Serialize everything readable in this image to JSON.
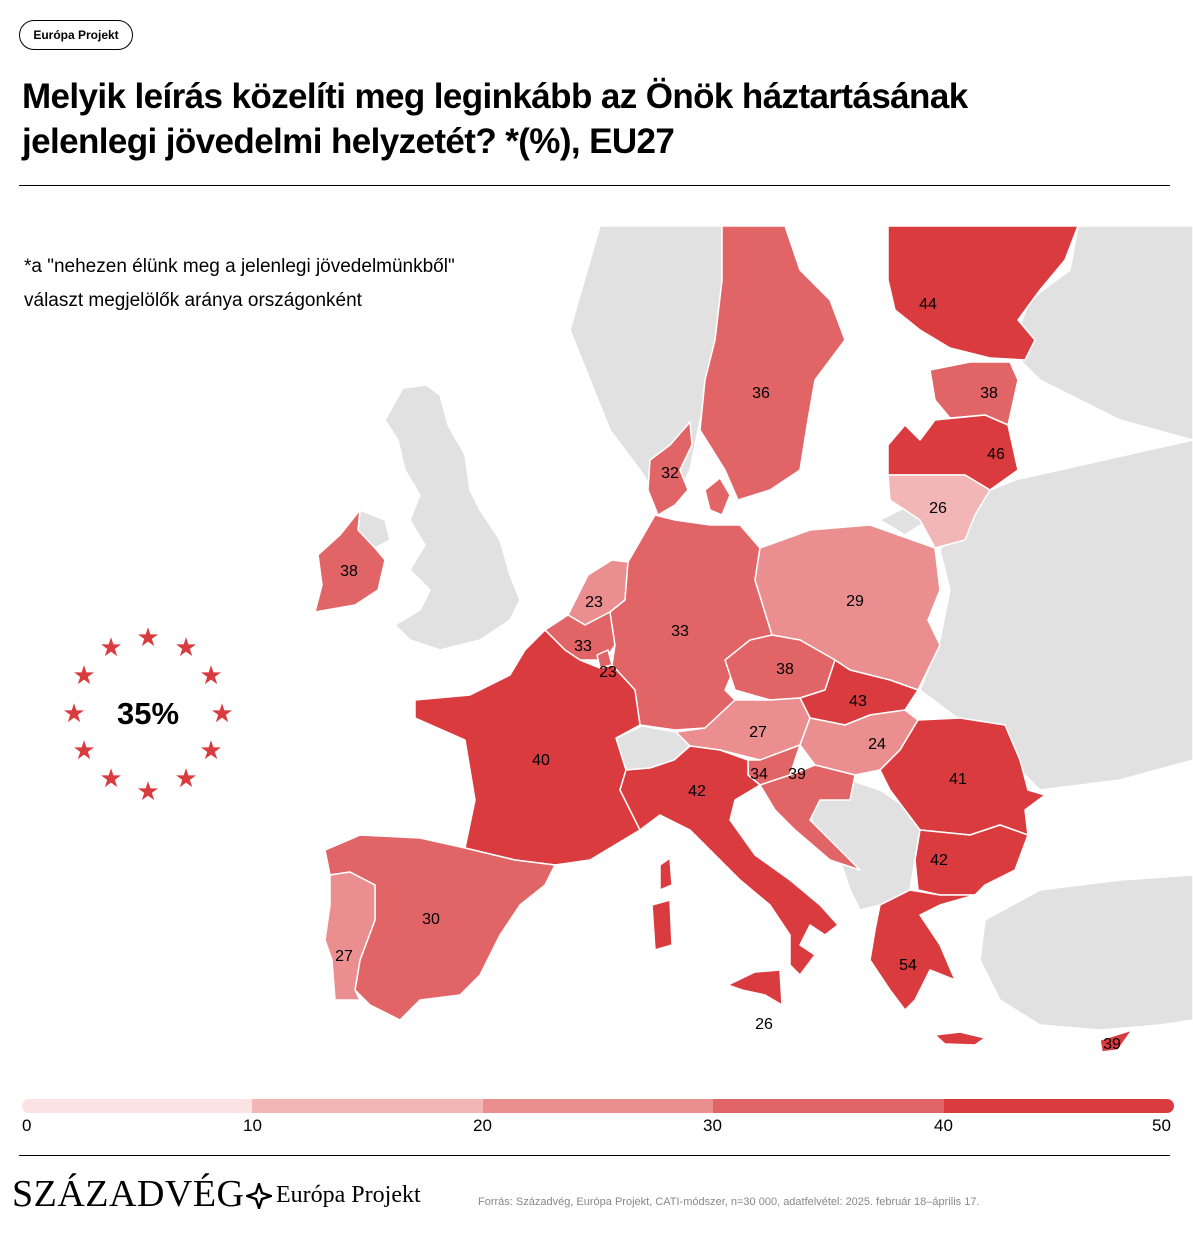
{
  "header": {
    "tag": "Európa Projekt",
    "title": "Melyik leírás közelíti meg leginkább az Önök háztartásának jelenlegi jövedelmi helyzetét? *(%), EU27"
  },
  "subtitle": {
    "line1": "*a \"nehezen élünk meg a jelenlegi jövedelmünkből\"",
    "line2": "választ megjelölők aránya országonként"
  },
  "eu_average": "35%",
  "map_values": {
    "finland": "44",
    "sweden": "36",
    "estonia": "38",
    "latvia": "46",
    "lithuania": "26",
    "denmark": "32",
    "ireland": "38",
    "netherlands": "23",
    "belgium": "33",
    "luxembourg": "23",
    "germany": "33",
    "poland": "29",
    "czechia": "38",
    "slovakia": "43",
    "austria": "27",
    "hungary": "24",
    "slovenia": "34",
    "croatia": "39",
    "romania": "41",
    "bulgaria": "42",
    "france": "40",
    "italy": "42",
    "malta": "26",
    "spain": "30",
    "portugal": "27",
    "greece": "54",
    "cyprus": "39"
  },
  "legend": {
    "ticks": [
      "0",
      "10",
      "20",
      "30",
      "40",
      "50"
    ],
    "colors": [
      "#fbe3e3",
      "#f3b6b7",
      "#eb8e8f",
      "#e16466",
      "#d93b3e"
    ]
  },
  "colors": {
    "nodata": "#e1e1e1",
    "bin_20_30": "#eb8e8f",
    "bin_30_40": "#e16466",
    "bin_40_50": "#d93b3e",
    "star": "#d93b3e"
  },
  "footer": {
    "logo_szazadveg": "SZÁZADVÉG",
    "logo_europa": "Európa Projekt",
    "source": "Forrás: Századvég, Európa Projekt, CATI-módszer, n=30 000, adatfelvétel: 2025. február 18–április 17."
  }
}
